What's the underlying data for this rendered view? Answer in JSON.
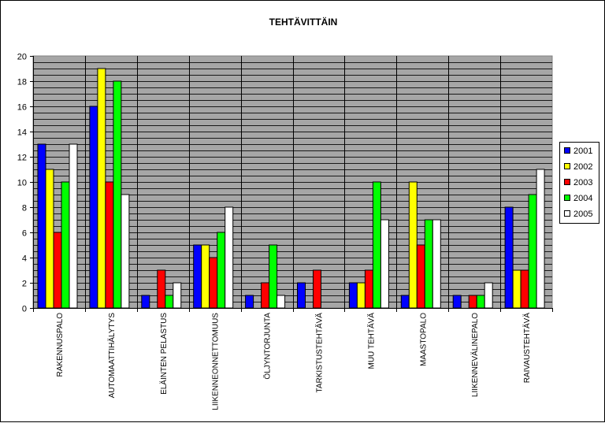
{
  "chart_data": {
    "type": "bar",
    "title": "TEHTÄVITTÄIN",
    "xlabel": "",
    "ylabel": "",
    "ylim": [
      0,
      20
    ],
    "ytick_step": 2,
    "grid": true,
    "legend_position": "right",
    "plot_background": "#a6a6a6",
    "categories": [
      "RAKENNUSPALO",
      "AUTOMAATTIHÄLYTYS",
      "ELÄINTEN PELASTUS",
      "LIIKENNEONNETTOMUUS",
      "ÖLJYNTORJUNTA",
      "TARKISTUSTEHTÄVÄ",
      "MUU TEHTÄVÄ",
      "MAASTOPALO",
      "LIIKENNEVÄLINEPALO",
      "RAIVAUSTEHTÄVÄ"
    ],
    "series": [
      {
        "name": "2001",
        "color": "#0000ff",
        "values": [
          13,
          16,
          1,
          5,
          1,
          2,
          2,
          1,
          1,
          8
        ]
      },
      {
        "name": "2002",
        "color": "#ffff00",
        "values": [
          11,
          19,
          0,
          5,
          0,
          0,
          2,
          10,
          0,
          3
        ]
      },
      {
        "name": "2003",
        "color": "#ff0000",
        "values": [
          6,
          10,
          3,
          4,
          2,
          3,
          3,
          5,
          1,
          3
        ]
      },
      {
        "name": "2004",
        "color": "#00ff00",
        "values": [
          10,
          18,
          1,
          6,
          5,
          0,
          10,
          7,
          1,
          9
        ]
      },
      {
        "name": "2005",
        "color": "#ffffff",
        "values": [
          13,
          9,
          2,
          8,
          1,
          0,
          7,
          7,
          2,
          11
        ]
      }
    ]
  }
}
